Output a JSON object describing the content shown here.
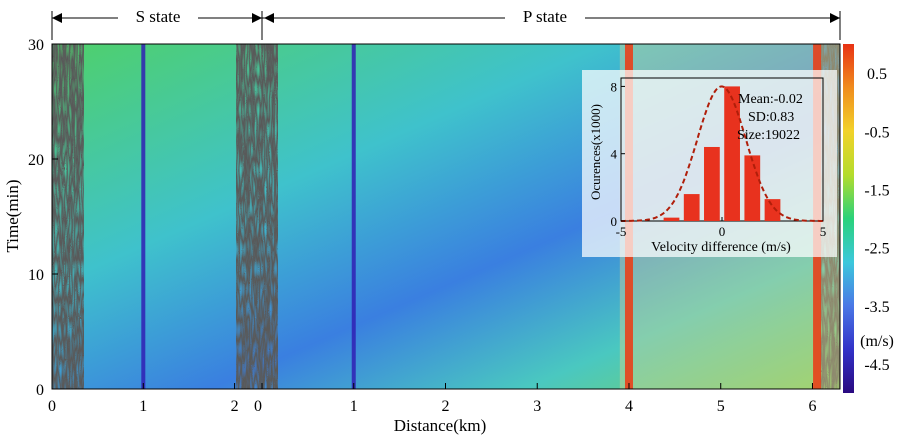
{
  "chart_data": [
    {
      "type": "heatmap",
      "title": "",
      "xlabel": "Distance(km)",
      "ylabel": "Time(min)",
      "panels": [
        {
          "label": "S state",
          "xlim": [
            0,
            2.3
          ],
          "x_ticks": [
            0,
            1,
            2
          ]
        },
        {
          "label": "P state",
          "xlim": [
            0,
            6.3
          ],
          "x_ticks": [
            0,
            1,
            2,
            3,
            4,
            5,
            6
          ]
        }
      ],
      "ylim": [
        0,
        30
      ],
      "y_ticks": [
        0,
        10,
        20,
        30
      ],
      "colorbar": {
        "unit": "(m/s)",
        "range": [
          -5,
          1
        ],
        "ticks": [
          0.5,
          -0.5,
          -1.5,
          -2.5,
          -3.5,
          -4.5
        ],
        "colors": [
          "#2a0a80",
          "#3232c8",
          "#4a78e6",
          "#3cc8dc",
          "#2ad27a",
          "#b4dc2c",
          "#f2d22a",
          "#f08c1e",
          "#e83214"
        ]
      },
      "features": [
        {
          "panel": "S state",
          "description": "low-velocity vertical stripe",
          "x": 1.0
        },
        {
          "panel": "P state",
          "description": "low-velocity vertical stripe",
          "x": 1.0
        },
        {
          "panel": "P state",
          "description": "high-velocity vertical stripe",
          "x": 4.0
        },
        {
          "panel": "P state",
          "description": "high-velocity vertical stripe",
          "x": 6.05
        }
      ]
    },
    {
      "type": "bar",
      "title": "",
      "xlabel": "Velocity difference (m/s)",
      "ylabel": "Ocurences(x1000)",
      "xlim": [
        -5,
        5
      ],
      "ylim": [
        0,
        8.5
      ],
      "x_ticks": [
        -5,
        0,
        5
      ],
      "y_ticks": [
        0,
        4,
        8
      ],
      "categories": [
        -2.5,
        -1.5,
        -0.5,
        0.5,
        1.5,
        2.5
      ],
      "values": [
        0.2,
        1.6,
        4.4,
        8.0,
        3.9,
        1.3
      ],
      "bar_color": "#e8321e",
      "fit": {
        "type": "normal",
        "mean": -0.02,
        "sd": 0.83,
        "color": "#b01e0a",
        "style": "dashed"
      },
      "stats": [
        "Mean:-0.02",
        "SD:0.83",
        "Size:19022"
      ]
    }
  ]
}
